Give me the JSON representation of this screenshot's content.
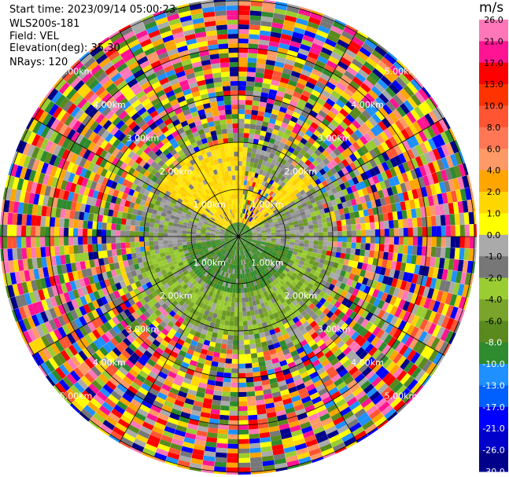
{
  "header": {
    "start_time": "Start time: 2023/09/14 05:00:23",
    "instrument": "WLS200s-181",
    "field": "Field: VEL",
    "elevation": "Elevation(deg): 35.30",
    "nrays": "NRays: 120"
  },
  "rings": {
    "labels": [
      "1.00km",
      "2.00km",
      "3.00km",
      "4.00km",
      "5.00km"
    ],
    "color": "#000000"
  },
  "colorbar": {
    "unit": "m/s",
    "ticks": [
      "26.0",
      "21.0",
      "17.0",
      "13.0",
      "10.0",
      "8.0",
      "6.0",
      "4.0",
      "2.0",
      "1.0",
      "0.0",
      "-1.0",
      "-2.0",
      "-4.0",
      "-6.0",
      "-8.0",
      "-10.0",
      "-13.0",
      "-17.0",
      "-21.0",
      "-26.0",
      "-30.0"
    ],
    "colors": [
      "#ff77b8",
      "#ff1493",
      "#ff0000",
      "#ff3300",
      "#ff5533",
      "#ff7755",
      "#ff9966",
      "#ffa500",
      "#ffd700",
      "#ffff00",
      "#aaaaaa",
      "#777777",
      "#9acd32",
      "#7aa52a",
      "#5a8a1e",
      "#2e8b2e",
      "#1e90ff",
      "#0060ff",
      "#0000ff",
      "#0000cc",
      "#00008b",
      "#000066"
    ]
  }
}
